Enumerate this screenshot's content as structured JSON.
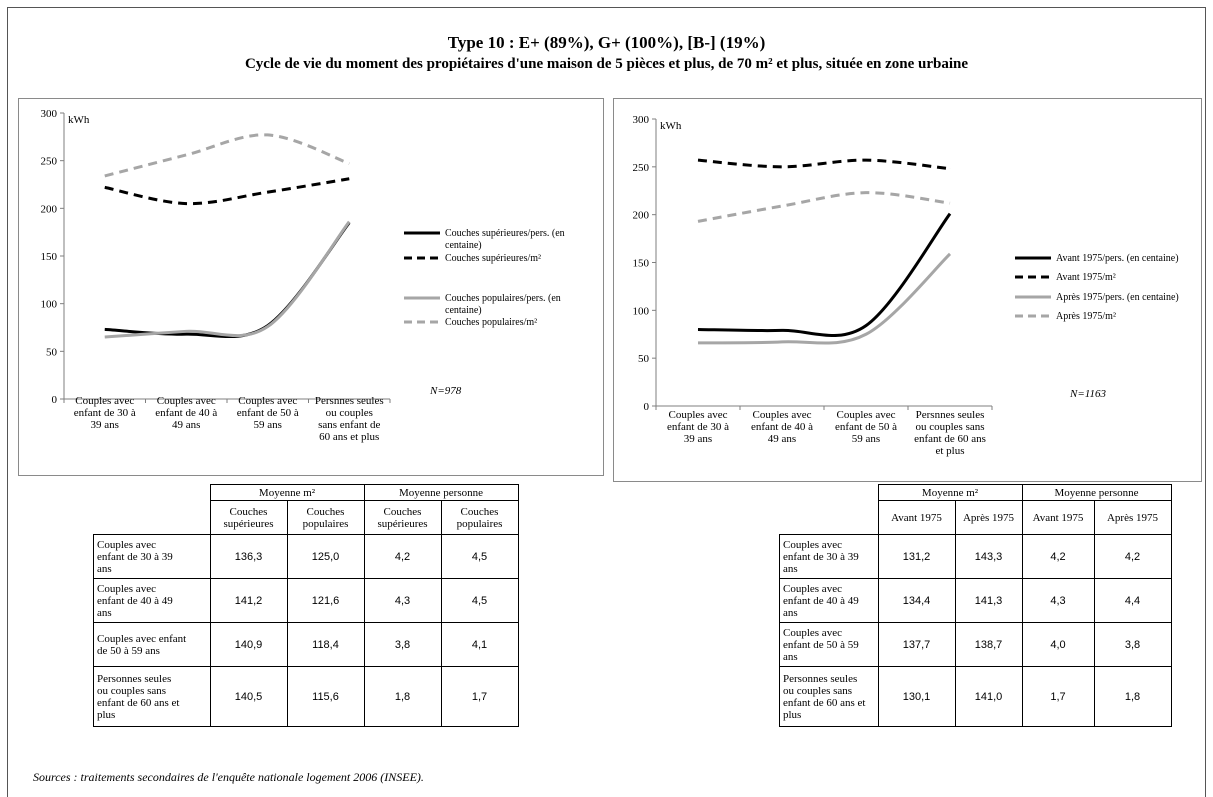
{
  "title_line1": "Type 10 : E+ (89%), G+ (100%), [B-] (19%)",
  "title_line2": "Cycle de vie du moment des propiétaires d'une maison de 5 pièces et plus, de 70 m² et plus, située en zone urbaine",
  "source": "Sources : traitements secondaires de l'enquête nationale logement 2006 (INSEE).",
  "chart_data": [
    {
      "type": "line",
      "ylabel": "kWh",
      "ylim": [
        0,
        300
      ],
      "yticks": [
        0,
        50,
        100,
        150,
        200,
        250,
        300
      ],
      "categories": [
        [
          "Couples avec",
          "enfant de 30 à",
          "39 ans"
        ],
        [
          "Couples avec",
          "enfant de 40 à",
          "49 ans"
        ],
        [
          "Couples avec",
          "enfant de 50 à",
          "59 ans"
        ],
        [
          "Persnnes seules",
          "ou couples",
          "sans enfant de",
          "60 ans et plus"
        ]
      ],
      "annotation": "N=978",
      "legend_position": "right",
      "series": [
        {
          "name": [
            "Couches supérieures/pers.  (en",
            "centaine)"
          ],
          "values": [
            73,
            68,
            77,
            185
          ],
          "color": "#000000",
          "dash": "solid"
        },
        {
          "name": [
            "Couches supérieures/m²"
          ],
          "values": [
            222,
            205,
            217,
            231
          ],
          "color": "#000000",
          "dash": "dashed"
        },
        {
          "name": [
            "Couches populaires/pers.  (en",
            "centaine)"
          ],
          "values": [
            65,
            71,
            76,
            186
          ],
          "color": "#a6a6a6",
          "dash": "solid"
        },
        {
          "name": [
            "Couches populaires/m²"
          ],
          "values": [
            234,
            256,
            277,
            247
          ],
          "color": "#a6a6a6",
          "dash": "dashed"
        }
      ]
    },
    {
      "type": "line",
      "ylabel": "kWh",
      "ylim": [
        0,
        300
      ],
      "yticks": [
        0,
        50,
        100,
        150,
        200,
        250,
        300
      ],
      "categories": [
        [
          "Couples avec",
          "enfant de 30 à",
          "39 ans"
        ],
        [
          "Couples avec",
          "enfant de 40 à",
          "49 ans"
        ],
        [
          "Couples avec",
          "enfant de 50 à",
          "59 ans"
        ],
        [
          "Persnnes seules",
          "ou couples sans",
          "enfant de 60 ans",
          "et plus"
        ]
      ],
      "annotation": "N=1163",
      "legend_position": "right",
      "series": [
        {
          "name": [
            "Avant 1975/pers. (en centaine)"
          ],
          "values": [
            80,
            79,
            84,
            201
          ],
          "color": "#000000",
          "dash": "solid"
        },
        {
          "name": [
            "Avant 1975/m²"
          ],
          "values": [
            257,
            250,
            257,
            248
          ],
          "color": "#000000",
          "dash": "dashed"
        },
        {
          "name": [
            "Après 1975/pers. (en centaine)"
          ],
          "values": [
            66,
            67,
            75,
            159
          ],
          "color": "#a6a6a6",
          "dash": "solid"
        },
        {
          "name": [
            "Après 1975/m²"
          ],
          "values": [
            193,
            209,
            223,
            212
          ],
          "color": "#a6a6a6",
          "dash": "dashed"
        }
      ]
    }
  ],
  "table1": {
    "group_headers": [
      "Moyenne m²",
      "Moyenne personne"
    ],
    "sub_headers": [
      [
        "Couches",
        "supérieures"
      ],
      [
        "Couches",
        "populaires"
      ],
      [
        "Couches",
        "supérieures"
      ],
      [
        "Couches",
        "populaires"
      ]
    ],
    "rows": [
      {
        "label": [
          "Couples avec",
          "enfant de 30 à 39",
          "ans"
        ],
        "values": [
          "136,3",
          "125,0",
          "4,2",
          "4,5"
        ]
      },
      {
        "label": [
          "Couples avec",
          "enfant de 40 à 49",
          "ans"
        ],
        "values": [
          "141,2",
          "121,6",
          "4,3",
          "4,5"
        ]
      },
      {
        "label": [
          "Couples avec enfant",
          "de 50 à 59 ans"
        ],
        "values": [
          "140,9",
          "118,4",
          "3,8",
          "4,1"
        ]
      },
      {
        "label": [
          "Personnes seules",
          "ou couples sans",
          "enfant de 60 ans et",
          "plus"
        ],
        "values": [
          "140,5",
          "115,6",
          "1,8",
          "1,7"
        ]
      }
    ]
  },
  "table2": {
    "group_headers": [
      "Moyenne m²",
      "Moyenne personne"
    ],
    "sub_headers": [
      [
        "Avant 1975"
      ],
      [
        "Après 1975"
      ],
      [
        "Avant 1975"
      ],
      [
        "Après 1975"
      ]
    ],
    "rows": [
      {
        "label": [
          "Couples avec",
          "enfant de 30 à 39",
          "ans"
        ],
        "values": [
          "131,2",
          "143,3",
          "4,2",
          "4,2"
        ]
      },
      {
        "label": [
          "Couples avec",
          "enfant de 40 à 49",
          "ans"
        ],
        "values": [
          "134,4",
          "141,3",
          "4,3",
          "4,4"
        ]
      },
      {
        "label": [
          "Couples avec",
          "enfant de 50 à 59",
          "ans"
        ],
        "values": [
          "137,7",
          "138,7",
          "4,0",
          "3,8"
        ]
      },
      {
        "label": [
          "Personnes seules",
          "ou couples sans",
          "enfant de 60 ans et",
          "plus"
        ],
        "values": [
          "130,1",
          "141,0",
          "1,7",
          "1,8"
        ]
      }
    ]
  }
}
